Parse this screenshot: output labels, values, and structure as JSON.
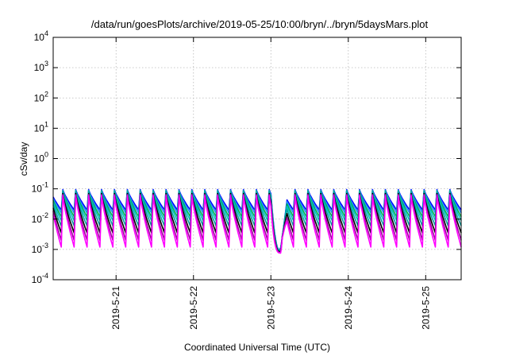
{
  "chart_data": {
    "type": "line",
    "title": "/data/run/goesPlots/archive/2019-05-25/10:00/bryn/../bryn/5daysMars.plot",
    "xlabel": "Coordinated Universal Time (UTC)",
    "ylabel": "cSv/day",
    "yscale": "log",
    "ylim": [
      0.0001,
      10000
    ],
    "xlim": [
      "2019-05-20 04:30",
      "2019-05-25 11:00"
    ],
    "grid": true,
    "legend": "none",
    "x_ticks": [
      "2019-5-21",
      "2019-5-22",
      "2019-5-23",
      "2019-5-24",
      "2019-5-25"
    ],
    "y_ticks": [
      {
        "base": "10",
        "exp": "-4"
      },
      {
        "base": "10",
        "exp": "-3"
      },
      {
        "base": "10",
        "exp": "-2"
      },
      {
        "base": "10",
        "exp": "-1"
      },
      {
        "base": "10",
        "exp": "0"
      },
      {
        "base": "10",
        "exp": "1"
      },
      {
        "base": "10",
        "exp": "2"
      },
      {
        "base": "10",
        "exp": "3"
      },
      {
        "base": "10",
        "exp": "4"
      }
    ],
    "cycle": "approximately 4 hours (pass-by-pass sawtooth)",
    "series": [
      {
        "color": "#ff00ff",
        "peak": 0.06,
        "trough": 0.0012
      },
      {
        "color": "#a000a0",
        "peak": 0.065,
        "trough": 0.002
      },
      {
        "color": "#000000",
        "peak": 0.07,
        "trough": 0.0035
      },
      {
        "color": "#00a0a0",
        "peak": 0.075,
        "trough": 0.006
      },
      {
        "color": "#00c0c0",
        "peak": 0.08,
        "trough": 0.009
      },
      {
        "color": "#00b050",
        "peak": 0.085,
        "trough": 0.012
      },
      {
        "color": "#1e90ff",
        "peak": 0.09,
        "trough": 0.016
      },
      {
        "color": "#0000ff",
        "peak": 0.095,
        "trough": 0.02
      }
    ],
    "dip_event": {
      "start": "2019-05-23 00:00",
      "end": "2019-05-23 06:00",
      "min": 0.0007
    }
  }
}
